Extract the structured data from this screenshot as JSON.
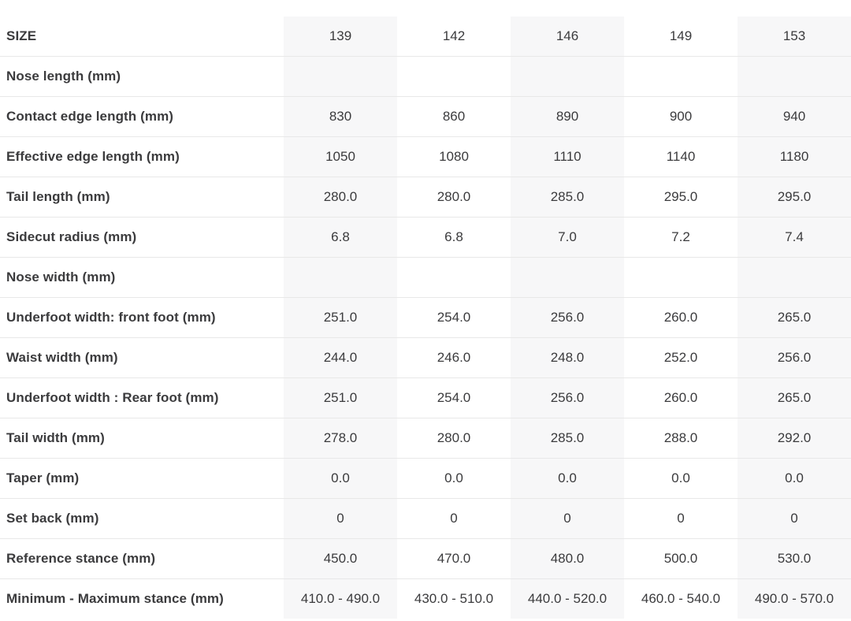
{
  "table": {
    "header": {
      "label": "SIZE",
      "sizes": [
        "139",
        "142",
        "146",
        "149",
        "153"
      ]
    },
    "rows": [
      {
        "label": "Nose length (mm)",
        "values": [
          "",
          "",
          "",
          "",
          ""
        ]
      },
      {
        "label": "Contact edge length (mm)",
        "values": [
          "830",
          "860",
          "890",
          "900",
          "940"
        ]
      },
      {
        "label": "Effective edge length (mm)",
        "values": [
          "1050",
          "1080",
          "1110",
          "1140",
          "1180"
        ]
      },
      {
        "label": "Tail length (mm)",
        "values": [
          "280.0",
          "280.0",
          "285.0",
          "295.0",
          "295.0"
        ]
      },
      {
        "label": "Sidecut radius (mm)",
        "values": [
          "6.8",
          "6.8",
          "7.0",
          "7.2",
          "7.4"
        ]
      },
      {
        "label": "Nose width (mm)",
        "values": [
          "",
          "",
          "",
          "",
          ""
        ]
      },
      {
        "label": "Underfoot width: front foot (mm)",
        "values": [
          "251.0",
          "254.0",
          "256.0",
          "260.0",
          "265.0"
        ]
      },
      {
        "label": "Waist width (mm)",
        "values": [
          "244.0",
          "246.0",
          "248.0",
          "252.0",
          "256.0"
        ]
      },
      {
        "label": "Underfoot width : Rear foot (mm)",
        "values": [
          "251.0",
          "254.0",
          "256.0",
          "260.0",
          "265.0"
        ]
      },
      {
        "label": "Tail width (mm)",
        "values": [
          "278.0",
          "280.0",
          "285.0",
          "288.0",
          "292.0"
        ]
      },
      {
        "label": "Taper (mm)",
        "values": [
          "0.0",
          "0.0",
          "0.0",
          "0.0",
          "0.0"
        ]
      },
      {
        "label": "Set back (mm)",
        "values": [
          "0",
          "0",
          "0",
          "0",
          "0"
        ]
      },
      {
        "label": "Reference stance (mm)",
        "values": [
          "450.0",
          "470.0",
          "480.0",
          "500.0",
          "530.0"
        ]
      },
      {
        "label": "Minimum - Maximum stance (mm)",
        "values": [
          "410.0 - 490.0",
          "430.0 - 510.0",
          "440.0 - 520.0",
          "460.0 - 540.0",
          "490.0 - 570.0"
        ]
      }
    ],
    "colors": {
      "column_stripe": "#f7f7f8",
      "row_divider": "#e8e8e8",
      "text": "#3b3b3d",
      "background": "#ffffff"
    }
  }
}
